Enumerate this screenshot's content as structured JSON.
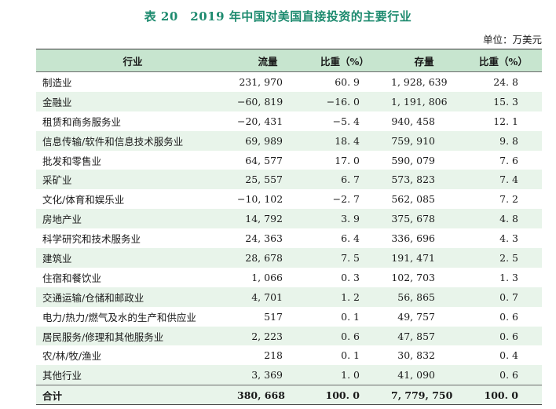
{
  "title": "表 20　2019 年中国对美国直接投资的主要行业",
  "unit": "单位：万美元",
  "headers": [
    "行业",
    "流量",
    "比重（%）",
    "存量",
    "比重（%）"
  ],
  "rows": [
    [
      "制造业",
      "231, 970",
      "60. 9",
      "1, 928, 639",
      "24. 8"
    ],
    [
      "金融业",
      "−60, 819",
      "−16. 0",
      "1, 191, 806",
      "15. 3"
    ],
    [
      "租赁和商务服务业",
      "−20, 431",
      "−5. 4",
      "940, 458",
      "12. 1"
    ],
    [
      "信息传输/软件和信息技术服务业",
      "69, 989",
      "18. 4",
      "759, 910",
      "9. 8"
    ],
    [
      "批发和零售业",
      "64, 577",
      "17. 0",
      "590, 079",
      "7. 6"
    ],
    [
      "采矿业",
      "25, 557",
      "6. 7",
      "573, 823",
      "7. 4"
    ],
    [
      "文化/体育和娱乐业",
      "−10, 102",
      "−2. 7",
      "562, 085",
      "7. 2"
    ],
    [
      "房地产业",
      "14, 792",
      "3. 9",
      "375, 678",
      "4. 8"
    ],
    [
      "科学研究和技术服务业",
      "24, 363",
      "6. 4",
      "336, 696",
      "4. 3"
    ],
    [
      "建筑业",
      "28, 678",
      "7. 5",
      "191, 471",
      "2. 5"
    ],
    [
      "住宿和餐饮业",
      "1, 066",
      "0. 3",
      "102, 703",
      "1. 3"
    ],
    [
      "交通运输/仓储和邮政业",
      "4, 701",
      "1. 2",
      "56, 865",
      "0. 7"
    ],
    [
      "电力/热力/燃气及水的生产和供应业",
      "517",
      "0. 1",
      "49, 757",
      "0. 6"
    ],
    [
      "居民服务/修理和其他服务业",
      "2, 223",
      "0. 6",
      "47, 857",
      "0. 6"
    ],
    [
      "农/林/牧/渔业",
      "218",
      "0. 1",
      "30, 832",
      "0. 4"
    ],
    [
      "其他行业",
      "3, 369",
      "1. 0",
      "41, 090",
      "0. 6"
    ]
  ],
  "total": [
    "合计",
    "380, 668",
    "100. 0",
    "7, 779, 750",
    "100. 0"
  ]
}
